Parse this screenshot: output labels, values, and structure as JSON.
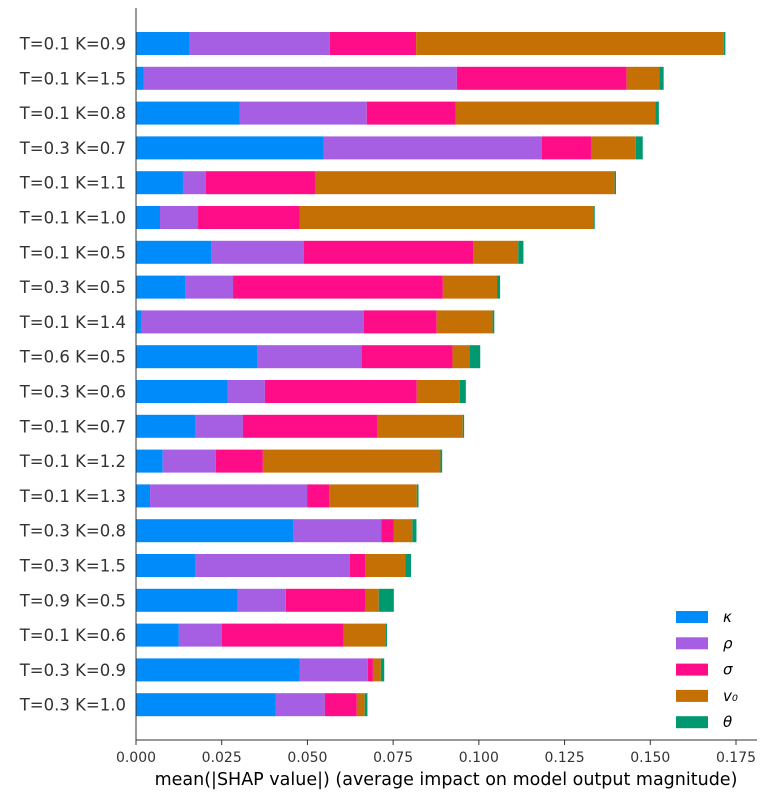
{
  "chart_data": {
    "type": "bar",
    "orientation": "horizontal",
    "stacked": true,
    "xlabel": "mean(|SHAP value|) (average impact on model output magnitude)",
    "xlim": [
      0,
      0.18
    ],
    "xticks": [
      "0.000",
      "0.025",
      "0.050",
      "0.075",
      "0.100",
      "0.125",
      "0.150",
      "0.175"
    ],
    "xtick_values": [
      0,
      0.025,
      0.05,
      0.075,
      0.1,
      0.125,
      0.15,
      0.175
    ],
    "grid": false,
    "legend_position": "bottom-right",
    "categories": [
      "T=0.1 K=0.9",
      "T=0.1 K=1.5",
      "T=0.1 K=0.8",
      "T=0.3 K=0.7",
      "T=0.1 K=1.1",
      "T=0.1 K=1.0",
      "T=0.1 K=0.5",
      "T=0.3 K=0.5",
      "T=0.1 K=1.4",
      "T=0.6 K=0.5",
      "T=0.3 K=0.6",
      "T=0.1 K=0.7",
      "T=0.1 K=1.2",
      "T=0.1 K=1.3",
      "T=0.3 K=0.8",
      "T=0.3 K=1.5",
      "T=0.9 K=0.5",
      "T=0.1 K=0.6",
      "T=0.3 K=0.9",
      "T=0.3 K=1.0"
    ],
    "series": [
      {
        "name": "κ",
        "color": "#008bfb",
        "values": [
          0.0157,
          0.0023,
          0.0303,
          0.0548,
          0.0137,
          0.007,
          0.0221,
          0.0143,
          0.0017,
          0.0355,
          0.0268,
          0.0172,
          0.0078,
          0.0041,
          0.046,
          0.0172,
          0.0297,
          0.0125,
          0.0478,
          0.0408
        ]
      },
      {
        "name": "ρ",
        "color": "#a65fe2",
        "values": [
          0.0408,
          0.0913,
          0.037,
          0.0636,
          0.0067,
          0.0111,
          0.0268,
          0.014,
          0.0647,
          0.0303,
          0.0108,
          0.014,
          0.0155,
          0.0458,
          0.0256,
          0.0452,
          0.014,
          0.0125,
          0.0198,
          0.0143
        ]
      },
      {
        "name": "σ",
        "color": "#ff0c88",
        "values": [
          0.0252,
          0.0495,
          0.0259,
          0.0143,
          0.0318,
          0.0297,
          0.0495,
          0.0612,
          0.0213,
          0.0265,
          0.0443,
          0.0393,
          0.0137,
          0.0064,
          0.0035,
          0.0044,
          0.0233,
          0.0355,
          0.0015,
          0.0093
        ]
      },
      {
        "name": "v₀",
        "color": "#c57005",
        "values": [
          0.0897,
          0.0096,
          0.0583,
          0.0131,
          0.0874,
          0.0856,
          0.0131,
          0.0158,
          0.0163,
          0.0049,
          0.0125,
          0.0248,
          0.0518,
          0.0256,
          0.0055,
          0.0117,
          0.0038,
          0.0122,
          0.0023,
          0.0023
        ]
      },
      {
        "name": "θ",
        "color": "#00986f",
        "values": [
          0.0005,
          0.0012,
          0.001,
          0.002,
          0.0004,
          0.0004,
          0.0015,
          0.0009,
          0.0005,
          0.0032,
          0.0018,
          0.0004,
          0.0005,
          0.0005,
          0.0012,
          0.0017,
          0.0044,
          0.0005,
          0.001,
          0.0008
        ]
      }
    ]
  }
}
